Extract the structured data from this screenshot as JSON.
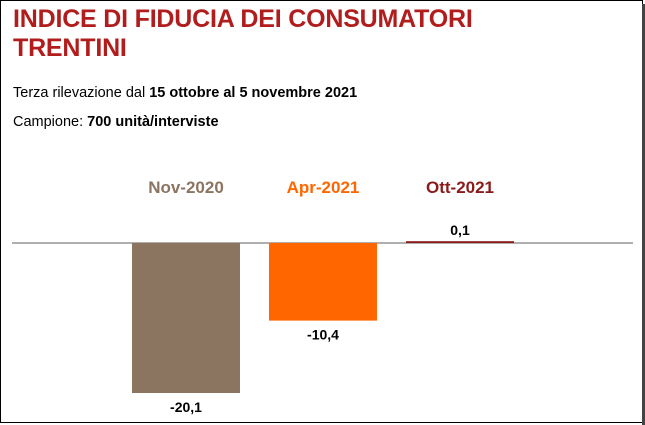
{
  "header": {
    "title_line1": "INDICE DI FIDUCIA DEI CONSUMATORI",
    "title_line2": "TRENTINI",
    "survey_prefix": "Terza rilevazione dal ",
    "survey_period": "15 ottobre al 5 novembre 2021",
    "sample_prefix": "Campione: ",
    "sample_value": "700 unità/interviste"
  },
  "colors": {
    "title": "#b11d1d",
    "nov2020": "#8b7460",
    "apr2021": "#ff6600",
    "ott2021": "#8b1a1a"
  },
  "chart_data": {
    "type": "bar",
    "categories": [
      "Nov-2020",
      "Apr-2021",
      "Ott-2021"
    ],
    "values": [
      -20.1,
      -10.4,
      0.1
    ],
    "value_labels": [
      "-20,1",
      "-10,4",
      "0,1"
    ],
    "category_colors": [
      "#8b7460",
      "#ff6600",
      "#8b1a1a"
    ],
    "ylim": [
      -20.1,
      0.1
    ],
    "grid": false,
    "legend": "none"
  }
}
